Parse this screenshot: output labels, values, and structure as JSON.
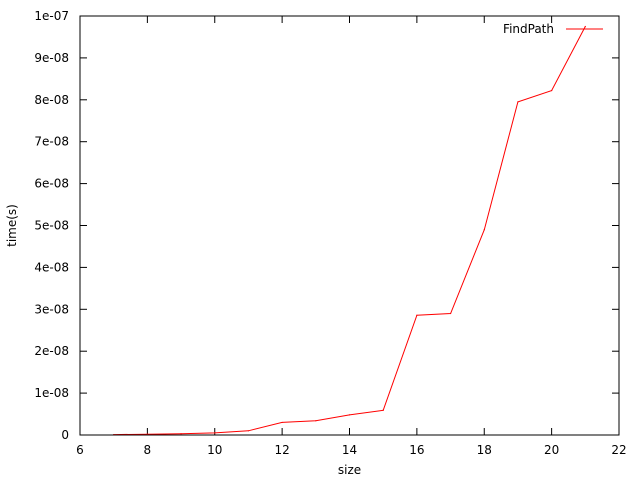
{
  "chart_data": {
    "type": "line",
    "xlabel": "size",
    "ylabel": "time(s)",
    "xlim": [
      6,
      22
    ],
    "ylim": [
      0,
      1e-07
    ],
    "x_ticks": [
      6,
      8,
      10,
      12,
      14,
      16,
      18,
      20,
      22
    ],
    "x_tick_labels": [
      "6",
      "8",
      "10",
      "12",
      "14",
      "16",
      "18",
      "20",
      "22"
    ],
    "y_ticks": [
      0,
      1e-08,
      2e-08,
      3e-08,
      4e-08,
      5e-08,
      6e-08,
      7e-08,
      8e-08,
      9e-08,
      1e-07
    ],
    "y_tick_labels": [
      "0",
      "1e-08",
      "2e-08",
      "3e-08",
      "4e-08",
      "5e-08",
      "6e-08",
      "7e-08",
      "8e-08",
      "9e-08",
      "1e-07"
    ],
    "grid": false,
    "legend_position": "top-right",
    "series": [
      {
        "name": "FindPath",
        "color": "#ff0000",
        "x": [
          7,
          8,
          9,
          10,
          11,
          12,
          13,
          14,
          15,
          16,
          17,
          18,
          19,
          20,
          21
        ],
        "y": [
          1e-10,
          2e-10,
          3e-10,
          5e-10,
          1e-09,
          3e-09,
          3.4e-09,
          4.8e-09,
          5.9e-09,
          2.86e-08,
          2.9e-08,
          4.9e-08,
          7.95e-08,
          8.22e-08,
          9.75e-08
        ]
      }
    ]
  }
}
